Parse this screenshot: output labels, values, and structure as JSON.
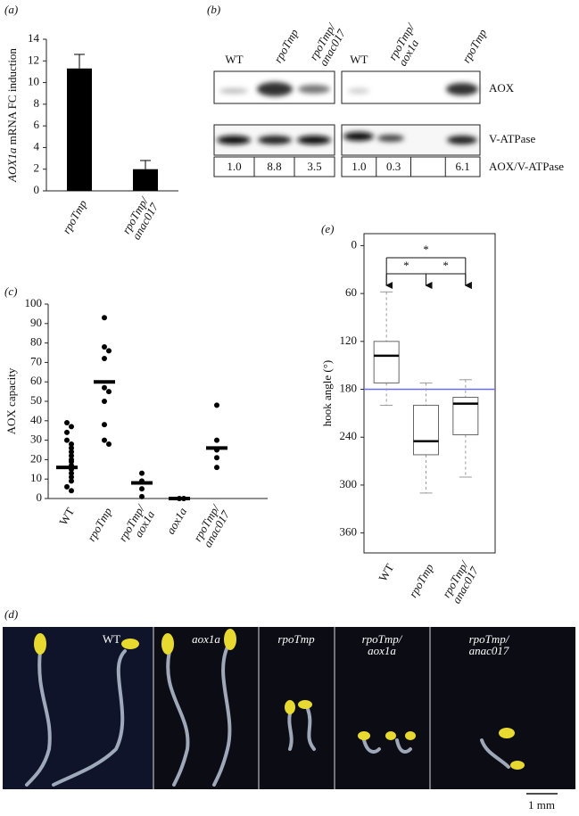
{
  "chart_data": [
    {
      "type": "bar",
      "panel_label": "(a)",
      "ylabel": "AOX1a mRNA FC induction",
      "categories": [
        "rpoTmp",
        "rpoTmp/anac017"
      ],
      "values": [
        11.3,
        2.0
      ],
      "errors": [
        1.3,
        0.8
      ],
      "color": "#000000",
      "ylim": [
        0,
        14
      ],
      "yticks": [
        0,
        2,
        4,
        6,
        8,
        10,
        12,
        14
      ]
    },
    {
      "type": "dot",
      "panel_label": "(c)",
      "ylabel": "AOX capacity",
      "categories": [
        "WT",
        "rpoTmp",
        "rpoTmp/aox1a",
        "aox1a",
        "rpoTmp/anac017"
      ],
      "values": [
        16,
        60,
        8,
        0,
        26
      ],
      "points": [
        [
          39,
          37,
          34,
          30,
          28,
          26,
          24,
          22,
          20,
          19,
          17,
          15,
          13,
          11,
          9,
          6,
          4
        ],
        [
          93,
          78,
          76,
          72,
          57,
          55,
          50,
          38,
          30,
          28
        ],
        [
          13,
          9,
          5,
          1
        ],
        [
          0,
          0
        ],
        [
          48,
          30,
          25,
          21,
          16
        ]
      ],
      "color": "#000000",
      "ylim": [
        0,
        100
      ],
      "yticks": [
        0,
        10,
        20,
        30,
        40,
        50,
        60,
        70,
        80,
        90,
        100
      ]
    },
    {
      "type": "box",
      "panel_label": "(e)",
      "ylabel": "hook angle (°)",
      "categories": [
        "WT",
        "rpoTmp",
        "rpoTmp/anac017"
      ],
      "boxes": [
        {
          "low": 58,
          "q1": 120,
          "median": 138,
          "q3": 172,
          "high": 200
        },
        {
          "low": 172,
          "q1": 200,
          "median": 245,
          "q3": 262,
          "high": 310
        },
        {
          "low": 168,
          "q1": 190,
          "median": 198,
          "q3": 237,
          "high": 290
        }
      ],
      "ylim": [
        -15,
        385
      ],
      "y_reversed": true,
      "yticks": [
        0,
        60,
        120,
        180,
        240,
        300,
        360
      ],
      "reference_line": {
        "value": 180,
        "color": "#6a6af0"
      },
      "comparisons": [
        {
          "pair": [
            "WT",
            "rpoTmp/anac017"
          ],
          "label": "*"
        },
        {
          "pair": [
            "WT",
            "rpoTmp"
          ],
          "label": "*"
        },
        {
          "pair": [
            "rpoTmp",
            "rpoTmp/anac017"
          ],
          "label": "*"
        }
      ]
    }
  ],
  "blot": {
    "panel_label": "(b)",
    "lanes": [
      "WT",
      "rpoTmp",
      "rpoTmp/anac017",
      "WT",
      "rpoTmp/aox1a",
      null,
      "rpoTmp"
    ],
    "rows": [
      "AOX",
      "V-ATPase",
      "AOX/V-ATPase"
    ],
    "ratios": [
      "1.0",
      "8.8",
      "3.5",
      "1.0",
      "0.3",
      null,
      "6.1"
    ]
  },
  "photos": {
    "panel_label": "(d)",
    "panels": [
      "WT",
      "aox1a",
      "rpoTmp",
      "rpoTmp/aox1a",
      "rpoTmp/anac017"
    ],
    "scale_bar": "1 mm"
  }
}
